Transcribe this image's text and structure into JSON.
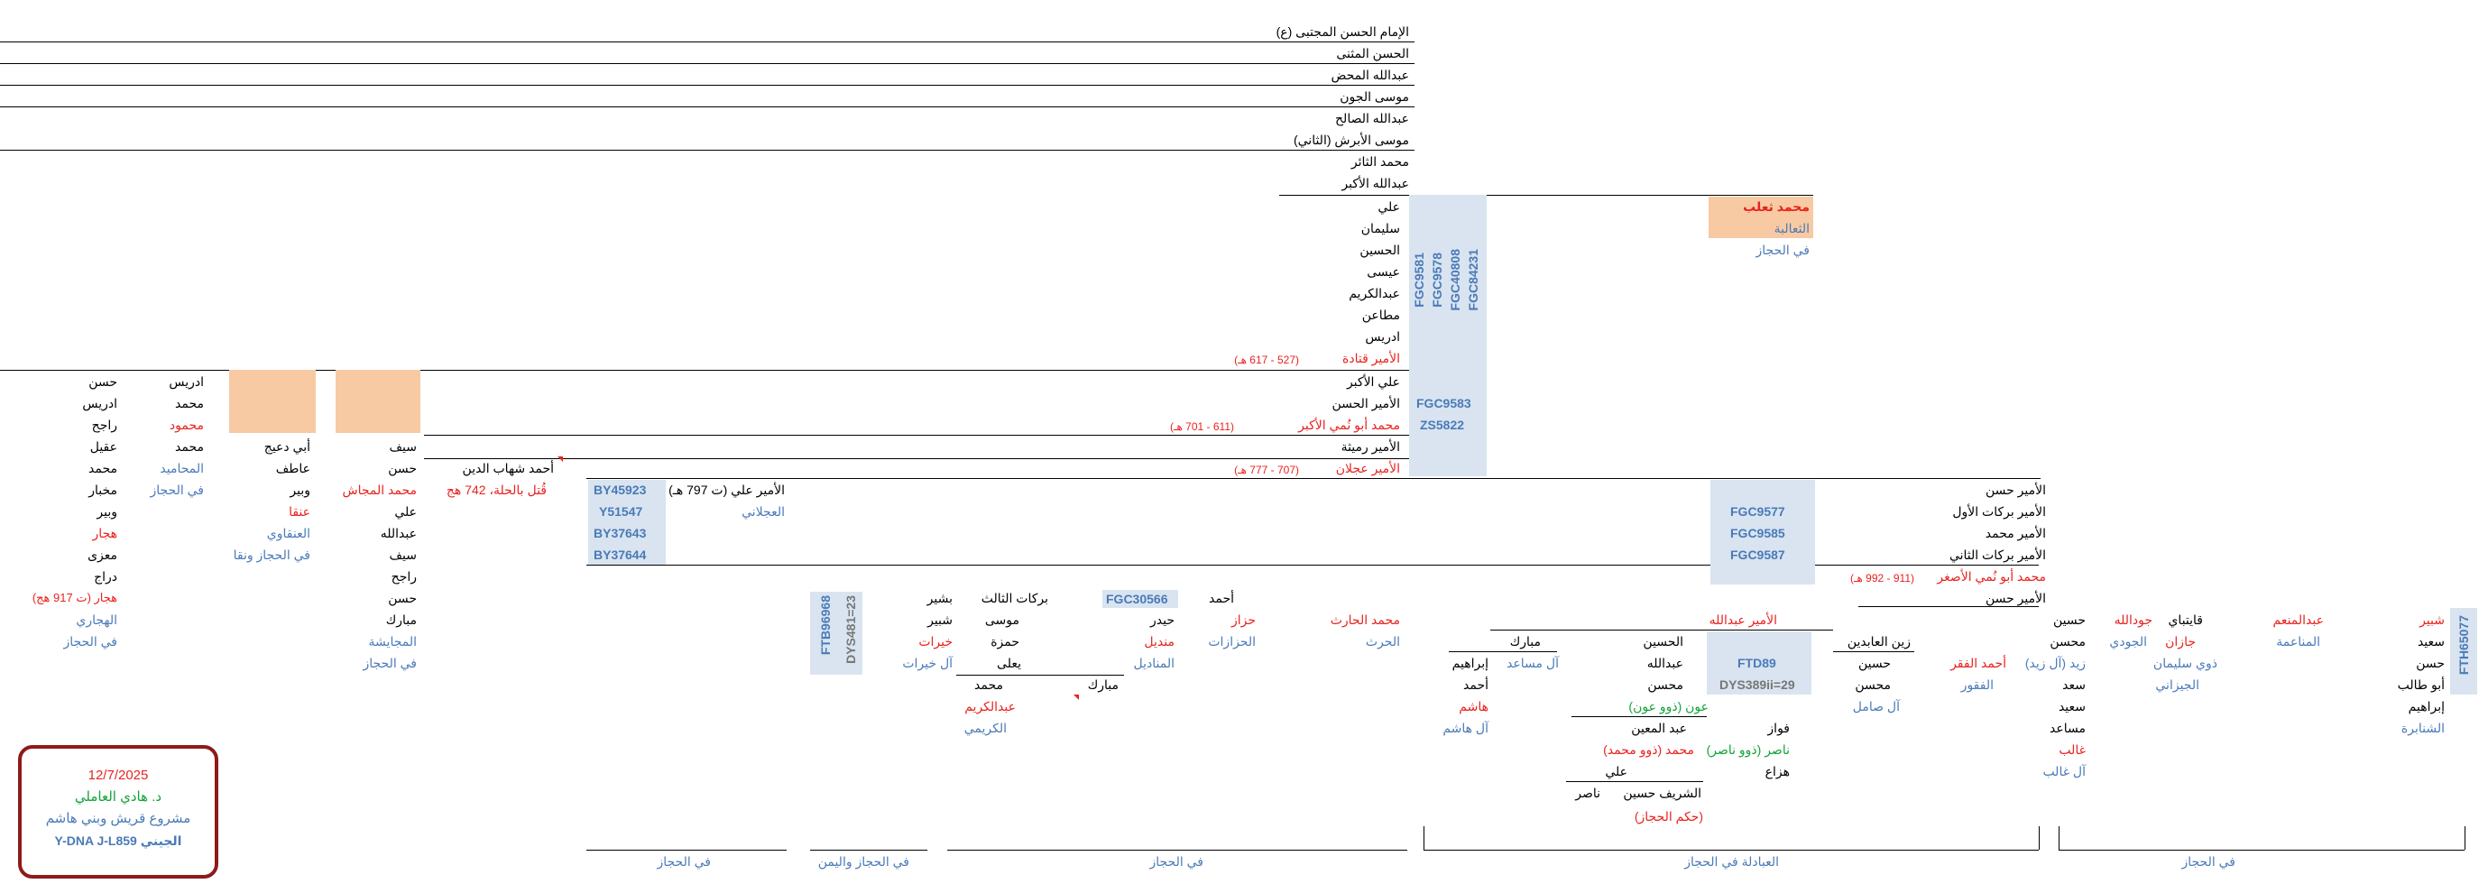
{
  "spine": [
    "الإمام الحسن المجتبى (ع)",
    "الحسن المثنى",
    "عبدالله المحض",
    "موسى الجون",
    "عبدالله الصالح",
    "موسى الأبرش (الثاني)",
    "محمد الثائر",
    "عبدالله الأكبر",
    "علي",
    "سليمان",
    "الحسين",
    "عيسى",
    "عبدالكريم",
    "مطاعن",
    "ادريس",
    "الأمير قتادة",
    "علي الأكبر",
    "الأمير الحسن",
    "محمد أبو نُمي الأكبر",
    "الأمير رميثة",
    "الأمير عجلان"
  ],
  "spine_dates": {
    "qatada": "(527 - 617 هـ)",
    "abu_numay_akbar": "(611 - 701 هـ)",
    "ajlan": "(707 - 777 هـ)"
  },
  "snps_top": [
    "FGC9581",
    "FGC9578",
    "FGC40808",
    "FGC84231"
  ],
  "snps_mid": [
    "FGC9583",
    "ZS5822"
  ],
  "taalib": {
    "name": "محمد ثعلب",
    "tribe": "الثعالبة",
    "place": "في الحجاز"
  },
  "barakat_line": {
    "names": [
      "الأمير حسن",
      "الأمير بركات الأول",
      "الأمير محمد",
      "الأمير بركات الثاني",
      "محمد أبو نُمي الأصغر",
      "الأمير حسن"
    ],
    "date": "(911 - 992 هـ)",
    "snps": [
      "FGC9577",
      "FGC9585",
      "FGC9587"
    ]
  },
  "ali_797": {
    "name": "الأمير علي (ت 797 هـ)",
    "tribe": "العجلاني",
    "snps": [
      "BY45923",
      "Y51547",
      "BY37643",
      "BY37644"
    ]
  },
  "shihab": {
    "name": "أحمد شهاب الدين",
    "note": "قُتل بالحلة، 742 هج"
  },
  "col_mujashsh": {
    "names": [
      "سيف",
      "حسن",
      "محمد المجاش",
      "علي",
      "عبدالله",
      "سيف",
      "راجح",
      "حسن",
      "مبارك"
    ],
    "tribe": "المجايشة",
    "place": "في الحجاز"
  },
  "col_ateef": {
    "names": [
      "أبي دعيج",
      "عاطف",
      "وبير",
      "عنقا"
    ],
    "tribe": "العنقاوي",
    "place": "في الحجاز ونقا"
  },
  "col_hamamid": {
    "names": [
      "ادريس",
      "محمد",
      "محمود",
      "محمد"
    ],
    "tribe": "المحاميد",
    "place": "في الحجاز"
  },
  "col_hujari": {
    "names": [
      "حسن",
      "ادريس",
      "راجح",
      "عقيل",
      "محمد",
      "مخبار",
      "وبير",
      "هجار",
      "معزى",
      "دراج",
      "هجار (ت 917 هج)"
    ],
    "tribe": "الهجاري",
    "place": "في الحجاز"
  },
  "khayrat": {
    "names": [
      "بشير",
      "شبير",
      "خيرات"
    ],
    "tribe": "آل خيرات",
    "snps": [
      "FTB96968",
      "DYS481=23"
    ]
  },
  "barakat3": {
    "names": [
      "بركات الثالث",
      "موسى",
      "حمزة",
      "يعلى"
    ],
    "left": "مبارك",
    "right": "محمد",
    "sub": "عبدالكريم",
    "tribe": "الكريمي"
  },
  "fgc30566": "FGC30566",
  "haydar": {
    "names": [
      "أحمد",
      "حيدر",
      "منديل"
    ],
    "tribe": "المناديل"
  },
  "hazzaz": {
    "name": "حزاز",
    "tribe": "الحزازات"
  },
  "harith": {
    "name": "محمد الحارث",
    "tribe": "الحرث"
  },
  "abadila": {
    "head": "الأمير عبدالله",
    "mubarak": "مبارك",
    "mubarak_tribe": "آل مساعد",
    "ibrahim": [
      "إبراهيم",
      "أحمد",
      "هاشم"
    ],
    "ibrahim_tribe": "آل هاشم",
    "hussein": [
      "الحسين",
      "عبدالله",
      "محسن"
    ],
    "awn": "عون (ذوو عون)",
    "muin": "عبد المعين",
    "muhammad": "محمد (ذوو محمد)",
    "ali": "علي",
    "sharif": "الشريف حسين",
    "nasir": "ناصر",
    "hijaz_rule": "(حكم الحجاز)",
    "fawaz": "فواز",
    "nasir2": "ناصر (ذوو ناصر)",
    "hazza": "هزاع",
    "snp1": "FTD89",
    "snp2": "DYS389ii=29",
    "zain": "زين العابدين",
    "zain_kids": [
      "حسين",
      "محسن"
    ],
    "zain_tribe": "آل صامل",
    "ahmad_faqr": "أحمد الفقر",
    "faqr_tribe": "الفقور"
  },
  "right_group": {
    "snp": "FTH65077",
    "col1": {
      "names": [
        "شبير",
        "سعيد",
        "حسن",
        "أبو طالب",
        "إبراهيم"
      ],
      "tribe": "الشنابرة"
    },
    "col1_name": "عبدالمنعم",
    "col1_tribe": "المناعمة",
    "col2": {
      "name": "قايتباي",
      "sub": "جازان",
      "tribe": "ذوي سليمان",
      "tribe2": "الجيزاني"
    },
    "col3": {
      "name": "جودالله",
      "tribe": "الجودي"
    },
    "col4": {
      "names": [
        "حسين",
        "محسن",
        "زيد (آل زيد)",
        "سعد",
        "سعيد",
        "مساعد",
        "غالب"
      ],
      "tribe": "آل غالب"
    }
  },
  "brackets": [
    "في الحجاز",
    "في الحجاز واليمن",
    "في الحجاز",
    "العبادلة في الحجاز",
    "في الحجاز"
  ],
  "card": {
    "date": "12/7/2025",
    "author": "د. هادي العاملي",
    "project": "مشروع قريش وبني هاشم",
    "haplo": "Y-DNA J-L859 الجيني"
  },
  "colors": {
    "red": "#e8231f",
    "blue": "#4a7ab8",
    "green": "#13a339",
    "peach": "#f8caa3",
    "lightblue": "#d9e4f0",
    "card_border": "#8e1a1a"
  }
}
